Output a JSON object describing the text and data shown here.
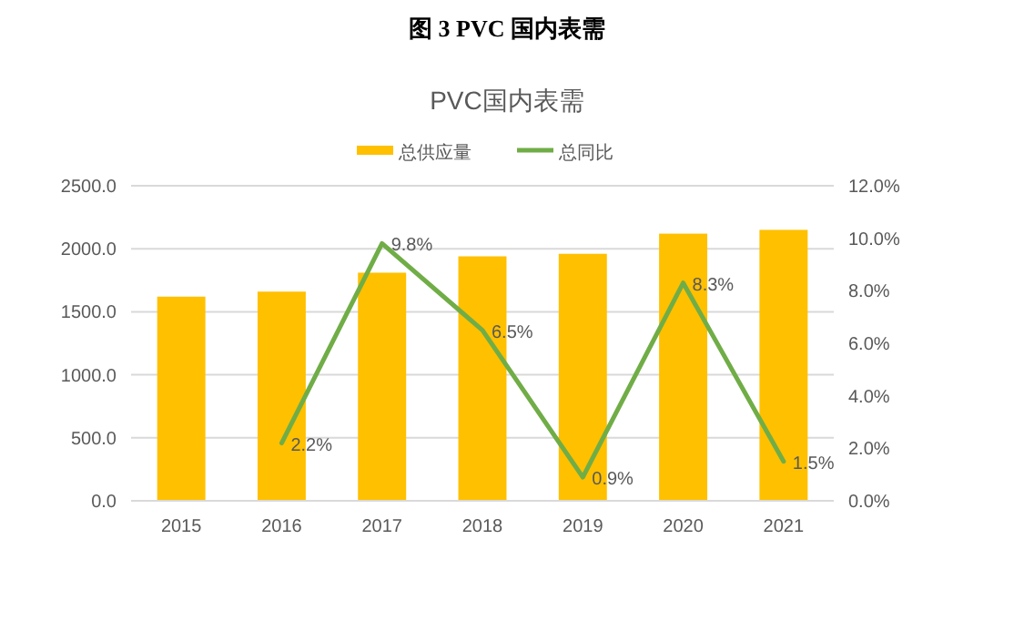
{
  "chart_data": {
    "type": "bar",
    "title": "图 3 PVC 国内表需",
    "subtitle": "PVC国内表需",
    "categories": [
      "2015",
      "2016",
      "2017",
      "2018",
      "2019",
      "2020",
      "2021"
    ],
    "series": [
      {
        "name": "总供应量",
        "color": "#ffc000",
        "values": [
          1620,
          1660,
          1810,
          1940,
          1960,
          2120,
          2150
        ]
      },
      {
        "name": "总同比",
        "type": "line",
        "axis": "y2",
        "color": "#70ad47",
        "values": [
          null,
          2.2,
          9.8,
          6.5,
          0.9,
          8.3,
          1.5
        ],
        "value_labels": [
          null,
          "2.2%",
          "9.8%",
          "6.5%",
          "0.9%",
          "8.3%",
          "1.5%"
        ]
      }
    ],
    "ylim": [
      0,
      2500
    ],
    "yticks": [
      {
        "value": 0,
        "label": "0.0"
      },
      {
        "value": 500,
        "label": "500.0"
      },
      {
        "value": 1000,
        "label": "1000.0"
      },
      {
        "value": 1500,
        "label": "1500.0"
      },
      {
        "value": 2000,
        "label": "2000.0"
      },
      {
        "value": 2500,
        "label": "2500.0"
      }
    ],
    "y2lim": [
      0,
      12
    ],
    "y2ticks": [
      {
        "value": 0,
        "label": "0.0%"
      },
      {
        "value": 2,
        "label": "2.0%"
      },
      {
        "value": 4,
        "label": "4.0%"
      },
      {
        "value": 6,
        "label": "6.0%"
      },
      {
        "value": 8,
        "label": "8.0%"
      },
      {
        "value": 10,
        "label": "10.0%"
      },
      {
        "value": 12,
        "label": "12.0%"
      }
    ],
    "grid": "y",
    "legend": "top",
    "marker": "none",
    "line_style": "solid"
  }
}
